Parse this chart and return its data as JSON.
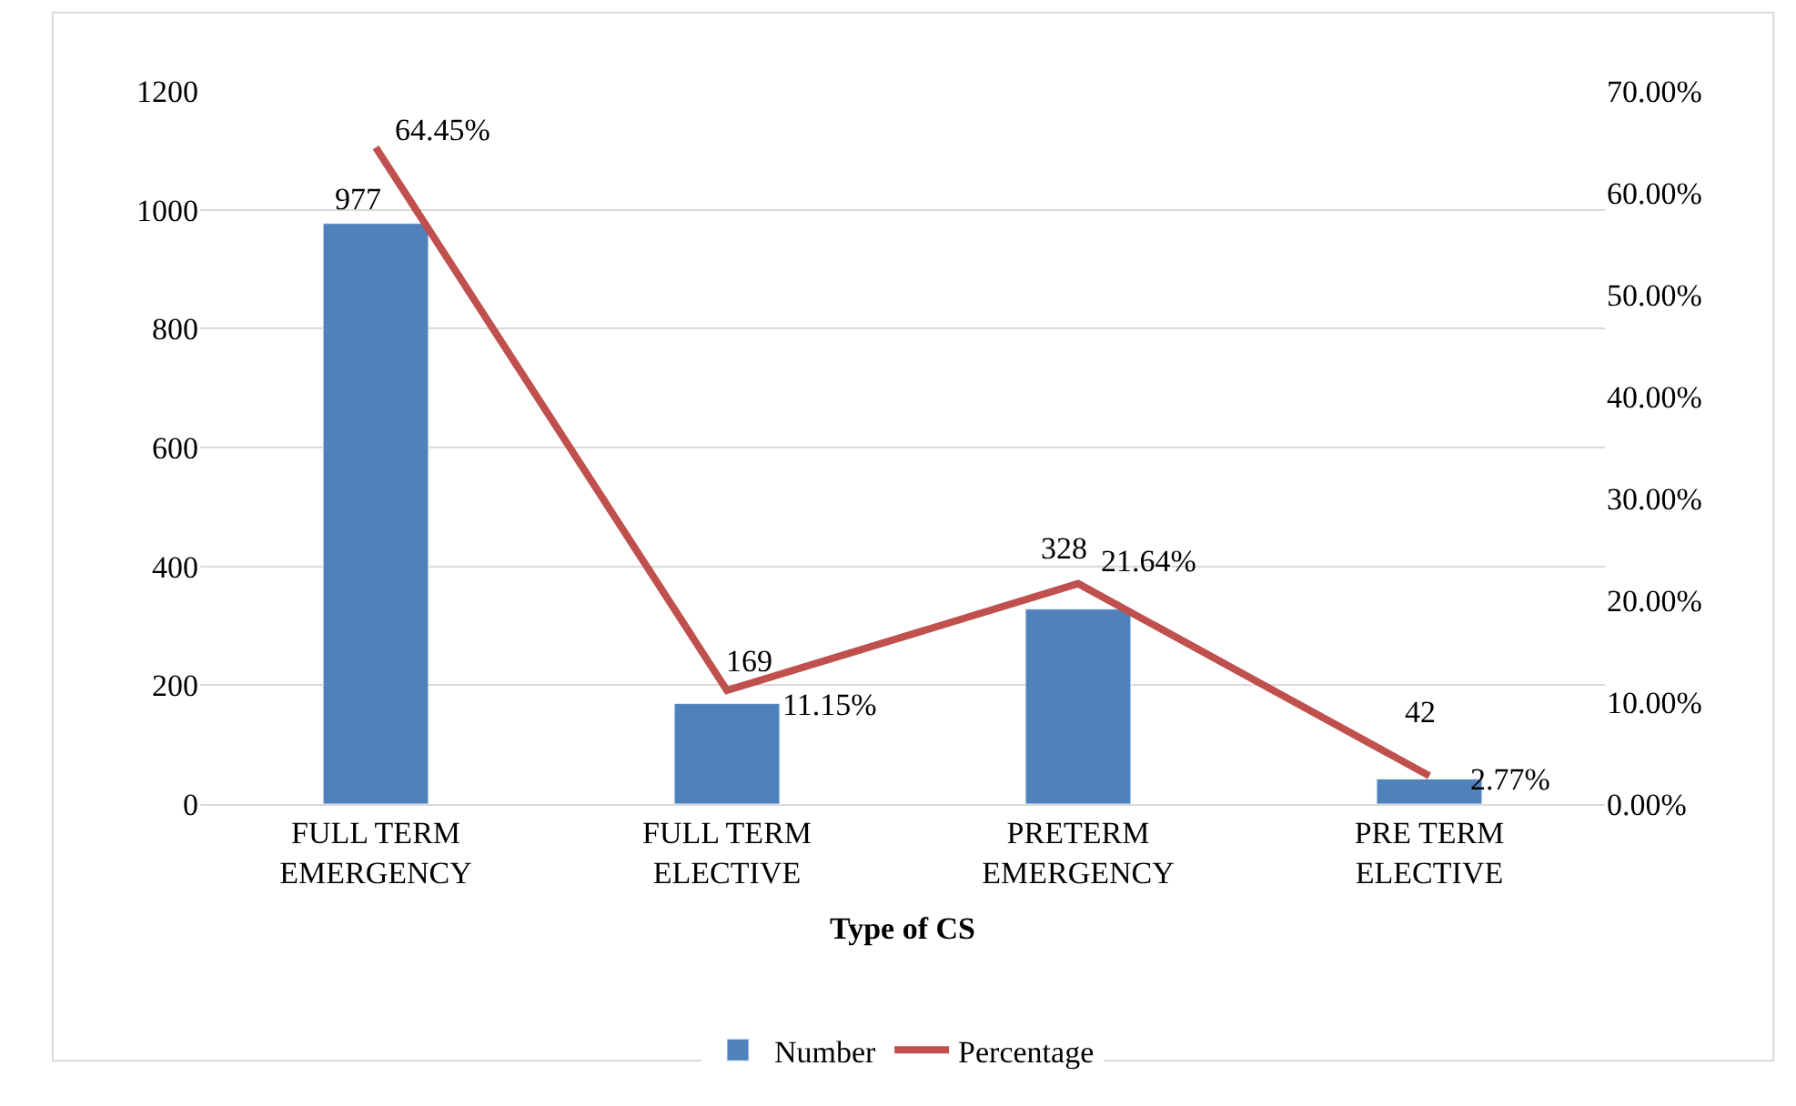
{
  "chart_data": {
    "type": "bar",
    "xlabel": "Type of CS",
    "categories": [
      "FULL TERM EMERGENCY",
      "FULL TERM ELECTIVE",
      "PRETERM EMERGENCY",
      "PRE TERM ELECTIVE"
    ],
    "series": [
      {
        "name": "Number",
        "color": "#4f81bd",
        "values": [
          977,
          169,
          328,
          42
        ],
        "value_labels": [
          "977",
          "169",
          "328",
          "42"
        ]
      },
      {
        "name": "Percentage",
        "type": "line",
        "axis": "y2",
        "color": "#c0504d",
        "values": [
          64.45,
          11.15,
          21.64,
          2.77
        ],
        "value_labels": [
          "64.45%",
          "11.15%",
          "21.64%",
          "2.77%"
        ]
      }
    ],
    "ylim": [
      0,
      1200
    ],
    "yticks": [
      0,
      200,
      400,
      600,
      800,
      1000,
      1200
    ],
    "y2lim": [
      0,
      70
    ],
    "y2ticks": [
      {
        "value": 0,
        "label": "0.00%"
      },
      {
        "value": 10,
        "label": "10.00%"
      },
      {
        "value": 20,
        "label": "20.00%"
      },
      {
        "value": 30,
        "label": "30.00%"
      },
      {
        "value": 40,
        "label": "40.00%"
      },
      {
        "value": 50,
        "label": "50.00%"
      },
      {
        "value": 60,
        "label": "60.00%"
      },
      {
        "value": 70,
        "label": "70.00%"
      }
    ],
    "grid": "y",
    "legend": "bottom",
    "marker": "none",
    "line_style": "solid"
  }
}
